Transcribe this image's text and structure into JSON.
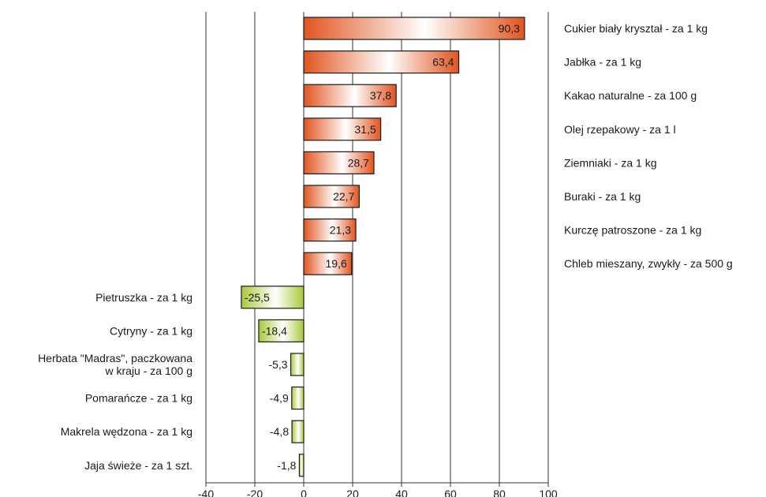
{
  "chart_data": {
    "type": "bar",
    "orientation": "horizontal",
    "categories": [
      "Cukier biały kryształ - za 1 kg",
      "Jabłka - za 1 kg",
      "Kakao naturalne - za 100 g",
      "Olej rzepakowy - za 1 l",
      "Ziemniaki - za 1 kg",
      "Buraki - za 1 kg",
      "Kurczę patroszone - za 1 kg",
      "Chleb mieszany, zwykły - za 500 g",
      "Pietruszka - za 1 kg",
      "Cytryny - za 1 kg",
      "Herbata \"Madras\", paczkowana w kraju - za 100 g",
      "Pomarańcze - za 1 kg",
      "Makrela wędzona - za 1 kg",
      "Jaja świeże - za 1 szt."
    ],
    "category_lines": [
      [
        "Cukier biały kryształ - za 1 kg"
      ],
      [
        "Jabłka - za 1 kg"
      ],
      [
        "Kakao naturalne - za 100 g"
      ],
      [
        "Olej rzepakowy - za 1 l"
      ],
      [
        "Ziemniaki - za 1 kg"
      ],
      [
        "Buraki - za 1 kg"
      ],
      [
        "Kurczę patroszone - za 1 kg"
      ],
      [
        "Chleb mieszany, zwykły - za 500 g"
      ],
      [
        "Pietruszka - za 1 kg"
      ],
      [
        "Cytryny - za 1 kg"
      ],
      [
        "Herbata \"Madras\", paczkowana",
        "w kraju - za 100 g"
      ],
      [
        "Pomarańcze - za 1 kg"
      ],
      [
        "Makrela wędzona - za 1 kg"
      ],
      [
        "Jaja świeże - za 1 szt."
      ]
    ],
    "values": [
      90.3,
      63.4,
      37.8,
      31.5,
      28.7,
      22.7,
      21.3,
      19.6,
      -25.5,
      -18.4,
      -5.3,
      -4.9,
      -4.8,
      -1.8
    ],
    "value_labels": [
      "90,3",
      "63,4",
      "37,8",
      "31,5",
      "28,7",
      "22,7",
      "21,3",
      "19,6",
      "-25,5",
      "-18,4",
      "-5,3",
      "-4,9",
      "-4,8",
      "-1,8"
    ],
    "xlim": [
      -40,
      100
    ],
    "xticks": [
      -40,
      -20,
      0,
      20,
      40,
      60,
      80,
      100
    ],
    "xtick_labels": [
      "-40",
      "-20",
      "0",
      "20",
      "40",
      "60",
      "80",
      "100"
    ],
    "grid": true,
    "title": "",
    "xlabel": "",
    "ylabel": "",
    "colors": {
      "positive_dark": "#e2541f",
      "positive_light": "#ffffff",
      "negative_dark": "#a9c93a",
      "negative_light": "#ffffff",
      "bar_border": "#1a1a1a",
      "grid": "#333333"
    }
  }
}
